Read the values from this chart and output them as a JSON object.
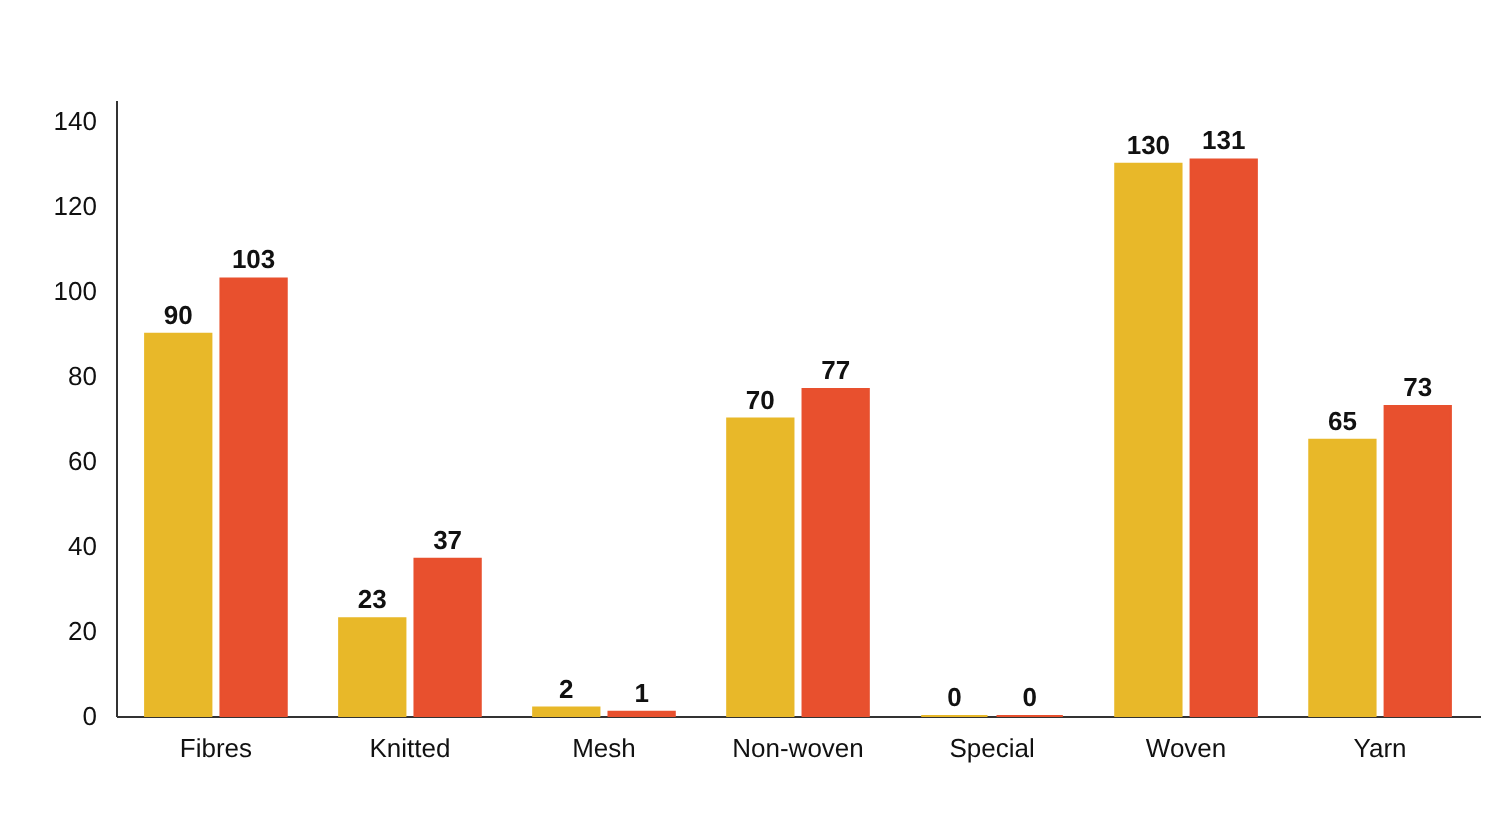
{
  "chart_data": {
    "type": "bar",
    "categories": [
      "Fibres",
      "Knitted",
      "Mesh",
      "Non-woven",
      "Special",
      "Woven",
      "Yarn"
    ],
    "series": [
      {
        "color": "#e8b829",
        "values": [
          90,
          23,
          2,
          70,
          0,
          130,
          65
        ]
      },
      {
        "color": "#e8502e",
        "values": [
          103,
          37,
          1,
          77,
          0,
          131,
          73
        ]
      }
    ],
    "ylim": [
      0,
      145
    ],
    "yticks": [
      0,
      20,
      40,
      60,
      80,
      100,
      120,
      140
    ],
    "grid": false,
    "legend": false,
    "data_labels": true
  }
}
